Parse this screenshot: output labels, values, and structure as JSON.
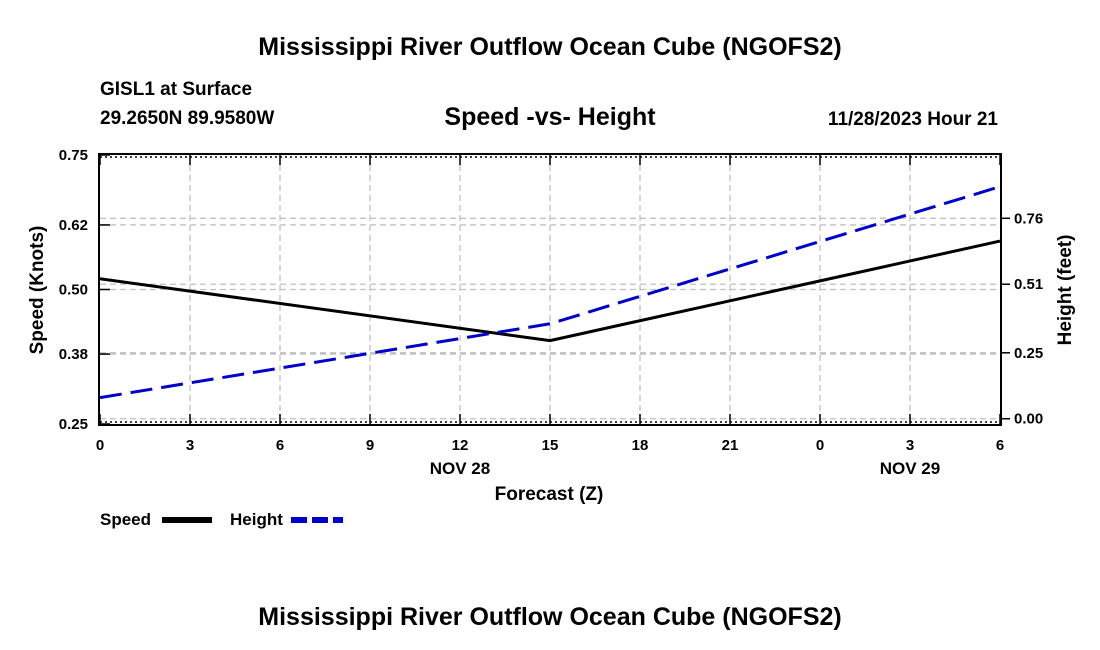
{
  "page": {
    "title": "Mississippi River Outflow Ocean Cube (NGOFS2)",
    "footer_title": "Mississippi River Outflow Ocean Cube (NGOFS2)"
  },
  "chart_data": {
    "type": "line",
    "title": "Speed -vs- Height",
    "station": "GISL1 at Surface",
    "coordinates": "29.2650N  89.9580W",
    "timestamp": "11/28/2023 Hour 21",
    "xlabel": "Forecast (Z)",
    "ylabel": "Speed (Knots)",
    "y2label": "Height (feet)",
    "x_positions": [
      0,
      3,
      6,
      9,
      12,
      15,
      18,
      21,
      24,
      27,
      30
    ],
    "x_tick_labels": [
      "0",
      "3",
      "6",
      "9",
      "12",
      "15",
      "18",
      "21",
      "0",
      "3",
      "6"
    ],
    "x_date_labels": [
      {
        "at": 12,
        "label": "NOV 28"
      },
      {
        "at": 27,
        "label": "NOV 29"
      }
    ],
    "xlim": [
      0,
      30
    ],
    "ylim": [
      0.25,
      0.75
    ],
    "y_ticks": [
      0.25,
      0.38,
      0.5,
      0.62,
      0.75
    ],
    "y_tick_labels": [
      "0.25",
      "0.38",
      "0.50",
      "0.62",
      "0.75"
    ],
    "y2lim": [
      -0.02,
      1.0
    ],
    "y2_ticks": [
      0.0,
      0.25,
      0.51,
      0.76
    ],
    "y2_tick_labels": [
      "0.00",
      "0.25",
      "0.51",
      "0.76"
    ],
    "series": [
      {
        "name": "Speed",
        "axis": "left",
        "color": "#000000",
        "dash": "solid",
        "x": [
          0,
          15,
          30
        ],
        "values": [
          0.52,
          0.405,
          0.59
        ]
      },
      {
        "name": "Height",
        "axis": "right",
        "color": "#0000cc",
        "dash": "dashed",
        "x": [
          0,
          15,
          30
        ],
        "values": [
          0.08,
          0.36,
          0.88
        ]
      }
    ],
    "grid": true,
    "legend_position": "bottom-left"
  }
}
